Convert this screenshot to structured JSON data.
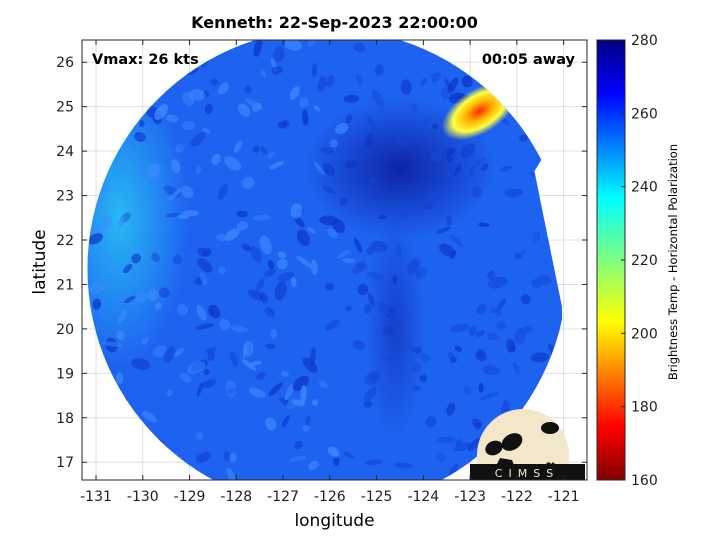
{
  "title": "Kenneth: 22-Sep-2023 22:00:00",
  "annotations": {
    "vmax": "Vmax: 26 kts",
    "time_away": "00:05 away"
  },
  "logo_text": "CIMSS",
  "chart_data": {
    "type": "heatmap",
    "title": "Kenneth: 22-Sep-2023 22:00:00",
    "xlabel": "longitude",
    "ylabel": "latitude",
    "xlim": [
      -131.3,
      -120.5
    ],
    "ylim": [
      16.6,
      26.5
    ],
    "xticks": [
      -131,
      -130,
      -129,
      -128,
      -127,
      -126,
      -125,
      -124,
      -123,
      -122,
      -121
    ],
    "yticks": [
      17,
      18,
      19,
      20,
      21,
      22,
      23,
      24,
      25,
      26
    ],
    "grid": true,
    "colorbar": {
      "label": "Brightness Temp - Horizontal Polarization",
      "range": [
        160,
        280
      ],
      "ticks": [
        160,
        180,
        200,
        220,
        240,
        260,
        280
      ],
      "colormap": "jet"
    },
    "regions": [
      {
        "name": "swath background",
        "lon": -125.5,
        "lat": 21.5,
        "value": 258
      },
      {
        "name": "cool band",
        "lon": -124.5,
        "lat": 23.6,
        "value": 270
      },
      {
        "name": "deep convection core",
        "lon": -122.8,
        "lat": 24.9,
        "value": 195
      },
      {
        "name": "western edge",
        "lon": -130.5,
        "lat": 22.5,
        "value": 240
      }
    ]
  },
  "colors": {
    "axes": "#262626",
    "grid": "#dfdfdf",
    "logo_bg": "#f3e7c9",
    "swath": "#1e62f0"
  }
}
